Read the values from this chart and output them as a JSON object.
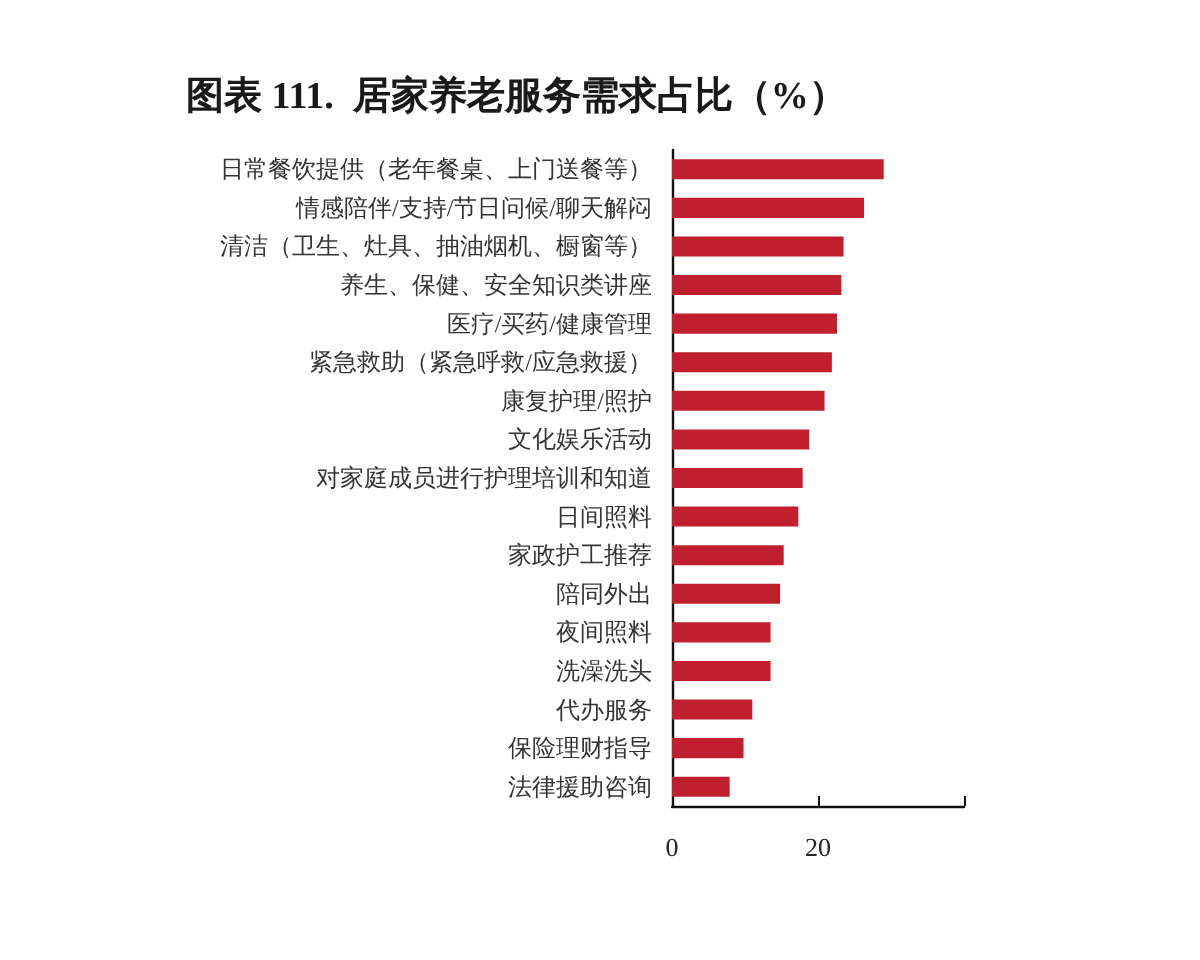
{
  "chart_data": {
    "type": "bar",
    "orientation": "horizontal",
    "title": "图表 111.  居家养老服务需求占比（%）",
    "categories": [
      "日常餐饮提供（老年餐桌、上门送餐等）",
      "情感陪伴/支持/节日问候/聊天解闷",
      "清洁（卫生、灶具、抽油烟机、橱窗等）",
      "养生、保健、安全知识类讲座",
      "医疗/买药/健康管理",
      "紧急救助（紧急呼救/应急救援）",
      "康复护理/照护",
      "文化娱乐活动",
      "对家庭成员进行护理培训和知道",
      "日间照料",
      "家政护工推荐",
      "陪同外出",
      "夜间照料",
      "洗澡洗头",
      "代办服务",
      "保险理财指导",
      "法律援助咨询"
    ],
    "values": [
      29.0,
      26.3,
      23.5,
      23.2,
      22.6,
      21.9,
      20.9,
      18.8,
      17.9,
      17.3,
      15.3,
      14.8,
      13.5,
      13.5,
      11.0,
      9.8,
      7.9
    ],
    "color": "#c0202e",
    "xlim": [
      0,
      40
    ],
    "xticks": [
      0,
      20,
      {
        "value": 40,
        "label": null
      }
    ],
    "grid": false
  }
}
